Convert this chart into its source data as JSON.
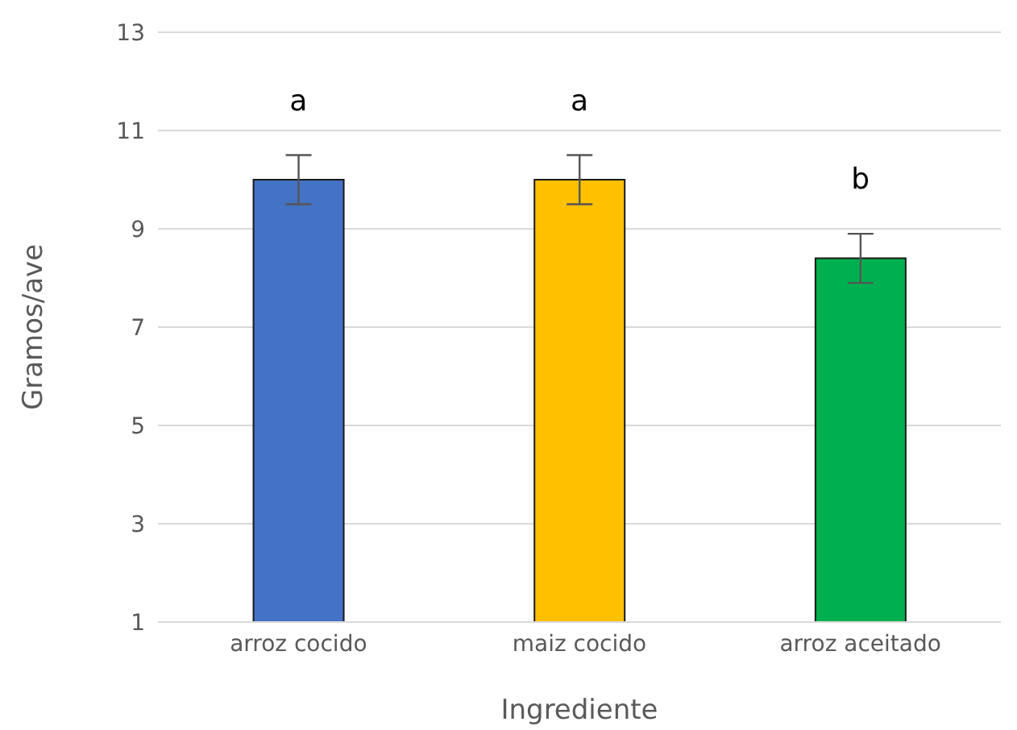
{
  "chart_data": {
    "type": "bar",
    "xlabel": "Ingrediente",
    "ylabel": "Gramos/ave",
    "categories": [
      "arroz cocido",
      "maiz cocido",
      "arroz aceitado"
    ],
    "values": [
      10.0,
      10.0,
      8.4
    ],
    "colors": [
      "#4472c4",
      "#ffc000",
      "#00b050"
    ],
    "errors": [
      0.5,
      0.5,
      0.5
    ],
    "ylim": [
      1,
      13
    ],
    "yticks": [
      1,
      3,
      5,
      7,
      9,
      11,
      13
    ],
    "grid": "y",
    "annotations": [
      "a",
      "a",
      "b"
    ]
  }
}
